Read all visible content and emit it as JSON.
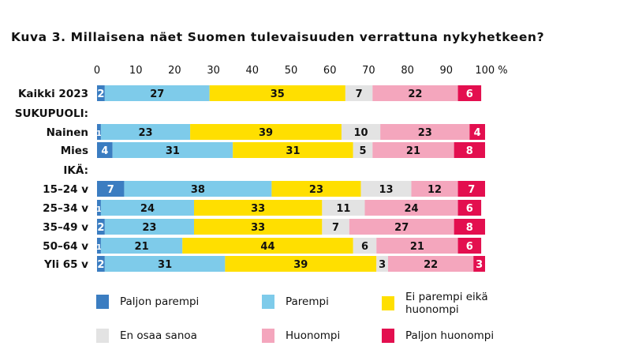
{
  "chart_data": {
    "type": "bar",
    "orientation": "horizontal",
    "stacked": true,
    "title": "Kuva 3. Millaisena näet Suomen tulevaisuuden verrattuna nykyhetkeen?",
    "xlim": [
      0,
      100
    ],
    "x_ticks": [
      0,
      10,
      20,
      30,
      40,
      50,
      60,
      70,
      80,
      90,
      100
    ],
    "x_unit": "%",
    "x_axis_position": "top",
    "grid": false,
    "legend_position": "bottom",
    "group_headers": [
      "SUKUPUOLI:",
      "IKÄ:"
    ],
    "categories": [
      "Kaikki 2023",
      "Nainen",
      "Mies",
      "15–24 v",
      "25–34 v",
      "35–49 v",
      "50–64 v",
      "Yli 65 v"
    ],
    "series": [
      {
        "name": "Paljon parempi",
        "color": "#3b7dc1",
        "values": [
          2,
          1,
          4,
          7,
          1,
          2,
          1,
          2
        ]
      },
      {
        "name": "Parempi",
        "color": "#7ecbea",
        "values": [
          27,
          23,
          31,
          38,
          24,
          23,
          21,
          31
        ]
      },
      {
        "name": "Ei parempi eikä huonompi",
        "color": "#ffdf00",
        "values": [
          35,
          39,
          31,
          23,
          33,
          33,
          44,
          39
        ]
      },
      {
        "name": "En osaa sanoa",
        "color": "#e3e3e3",
        "values": [
          7,
          10,
          5,
          13,
          11,
          7,
          6,
          3
        ]
      },
      {
        "name": "Huonompi",
        "color": "#f4a6bd",
        "values": [
          22,
          23,
          21,
          12,
          24,
          27,
          21,
          22
        ]
      },
      {
        "name": "Paljon huonompi",
        "color": "#e30f4f",
        "values": [
          6,
          4,
          8,
          7,
          6,
          8,
          6,
          3
        ]
      }
    ]
  }
}
